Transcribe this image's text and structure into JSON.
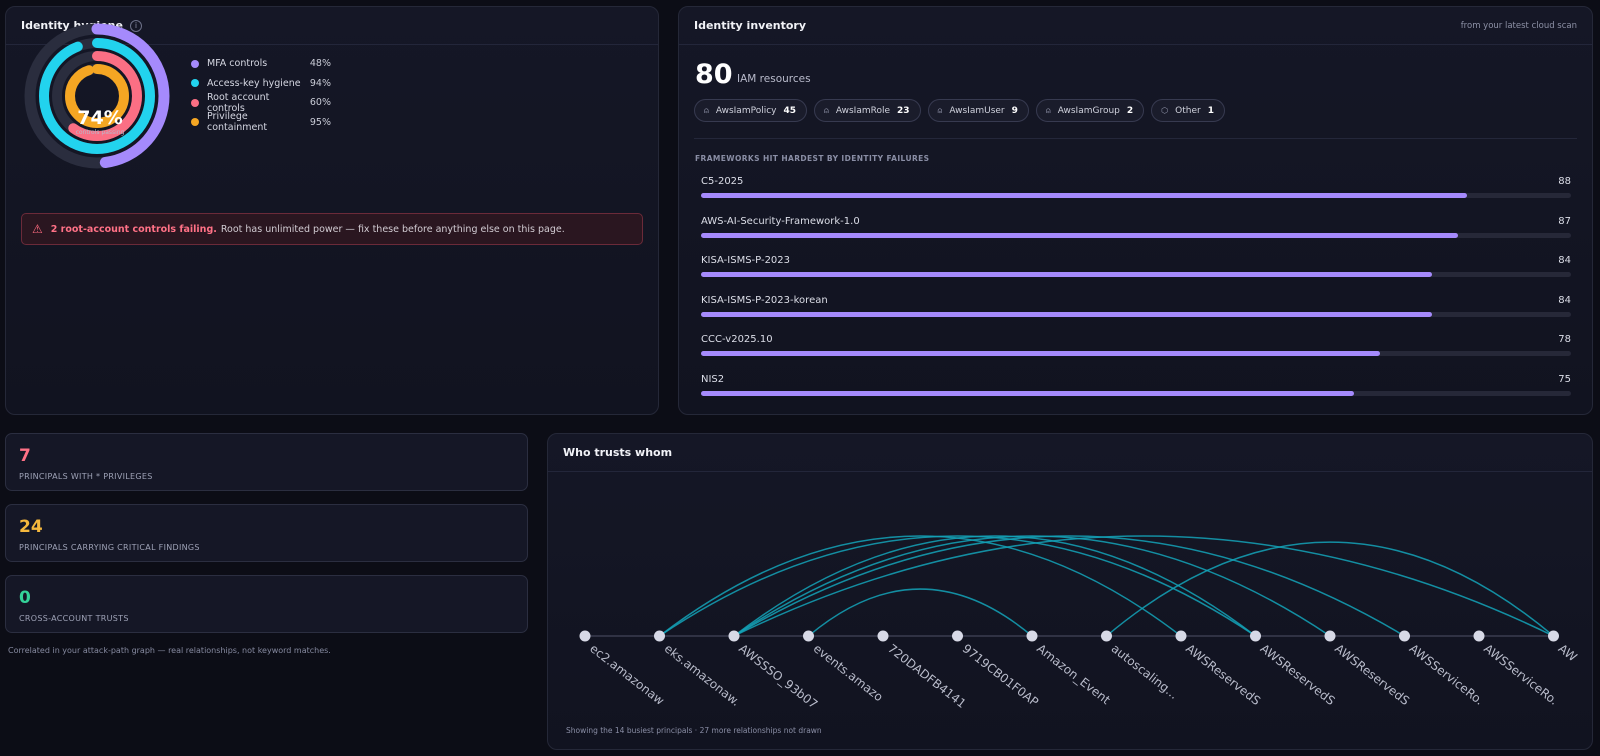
{
  "hygiene": {
    "title": "Identity hygiene",
    "info_icon": "i",
    "score": "74%",
    "score_label": "controls passing",
    "items": [
      {
        "label": "MFA controls",
        "value": "48%",
        "pct": 48,
        "color": "#a58afc"
      },
      {
        "label": "Access-key hygiene",
        "value": "94%",
        "pct": 94,
        "color": "#22d3ee"
      },
      {
        "label": "Root account controls",
        "value": "60%",
        "pct": 60,
        "color": "#fb6f84"
      },
      {
        "label": "Privilege containment",
        "value": "95%",
        "pct": 95,
        "color": "#f5a623"
      }
    ],
    "alert": {
      "icon": "⚠",
      "strong": "2 root-account controls failing.",
      "text": "Root has unlimited power — fix these before anything else on this page."
    }
  },
  "inventory": {
    "title": "Identity inventory",
    "note": "from your latest cloud scan",
    "count": "80",
    "count_label": "IAM resources",
    "chips": [
      {
        "icon": "user-icon",
        "glyph": "⍝",
        "label": "AwsIamPolicy",
        "count": "45"
      },
      {
        "icon": "user-icon",
        "glyph": "⍝",
        "label": "AwsIamRole",
        "count": "23"
      },
      {
        "icon": "user-icon",
        "glyph": "⍝",
        "label": "AwsIamUser",
        "count": "9"
      },
      {
        "icon": "user-icon",
        "glyph": "⍝",
        "label": "AwsIamGroup",
        "count": "2"
      },
      {
        "icon": "hexagon-icon",
        "glyph": "⬡",
        "label": "Other",
        "count": "1"
      }
    ],
    "frameworks_title": "FRAMEWORKS HIT HARDEST BY IDENTITY FAILURES",
    "frameworks": [
      {
        "name": "C5-2025",
        "value": "88"
      },
      {
        "name": "AWS-AI-Security-Framework-1.0",
        "value": "87"
      },
      {
        "name": "KISA-ISMS-P-2023",
        "value": "84"
      },
      {
        "name": "KISA-ISMS-P-2023-korean",
        "value": "84"
      },
      {
        "name": "CCC-v2025.10",
        "value": "78"
      },
      {
        "name": "NIS2",
        "value": "75"
      }
    ]
  },
  "stats": [
    {
      "value": "7",
      "label": "PRINCIPALS WITH * PRIVILEGES",
      "color": "#ff7186"
    },
    {
      "value": "24",
      "label": "PRINCIPALS CARRYING CRITICAL FINDINGS",
      "color": "#f5b83d"
    },
    {
      "value": "0",
      "label": "CROSS-ACCOUNT TRUSTS",
      "color": "#34d399"
    }
  ],
  "stats_note": "Correlated in your attack-path graph — real relationships, not keyword matches.",
  "trust": {
    "title": "Who trusts whom",
    "nodes": [
      "ec2.amazonaw",
      "eks.amazonaw.",
      "AWSSSO_93b07",
      "events.amazo",
      "720DADFB4141",
      "9719CB01F0AP",
      "Amazon_Event",
      "autoscaling...",
      "AWSReservedS",
      "AWSReservedS",
      "AWSReservedS",
      "AWSServiceRo.",
      "AWSServiceRo.",
      "AW"
    ],
    "edges": [
      [
        1,
        8
      ],
      [
        1,
        9
      ],
      [
        2,
        9
      ],
      [
        2,
        10
      ],
      [
        2,
        11
      ],
      [
        2,
        13
      ],
      [
        3,
        6
      ],
      [
        7,
        13
      ]
    ],
    "note": "Showing the 14 busiest principals · 27 more relationships not drawn"
  }
}
